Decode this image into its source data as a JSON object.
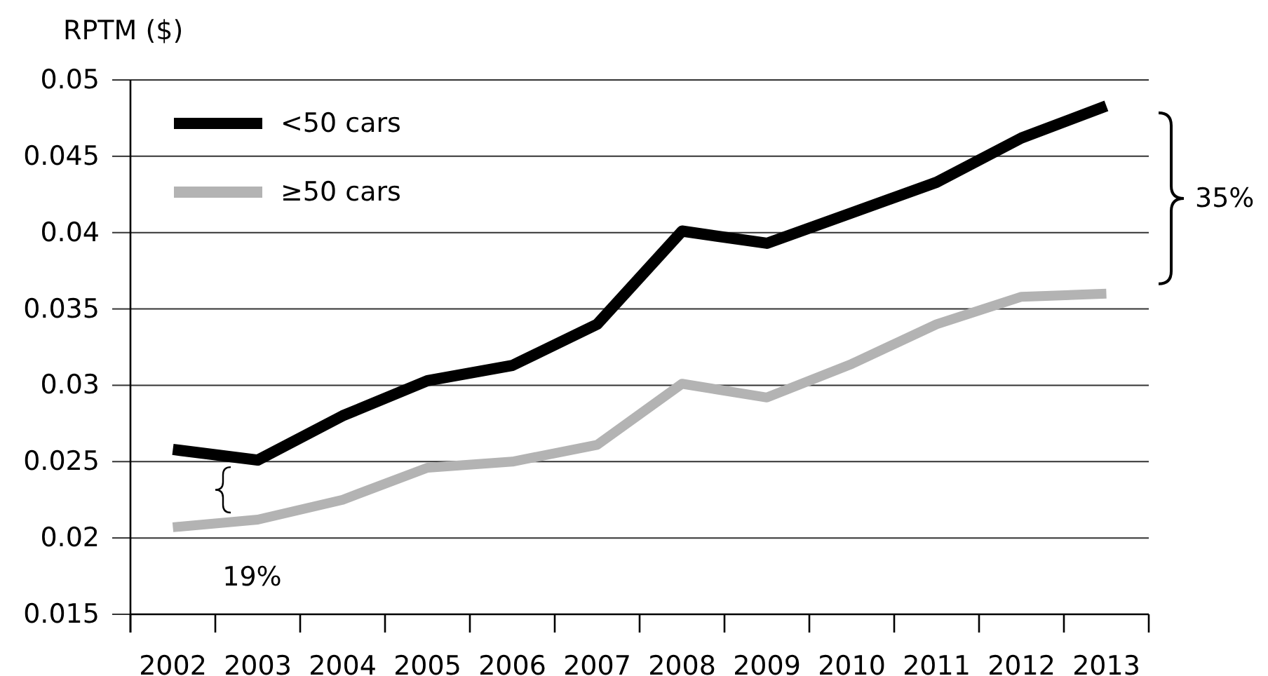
{
  "chart_data": {
    "type": "line",
    "ylabel": "RPTM ($)",
    "categories": [
      "2002",
      "2003",
      "2004",
      "2005",
      "2006",
      "2007",
      "2008",
      "2009",
      "2010",
      "2011",
      "2012",
      "2013"
    ],
    "series": [
      {
        "name": "<50 cars",
        "color": "#000000",
        "values": [
          0.0258,
          0.0251,
          0.028,
          0.0303,
          0.0313,
          0.034,
          0.0401,
          0.0393,
          0.0413,
          0.0433,
          0.0462,
          0.0483
        ]
      },
      {
        "name": "≥50 cars",
        "color": "#b3b3b3",
        "values": [
          0.0207,
          0.0212,
          0.0225,
          0.0246,
          0.025,
          0.0261,
          0.0301,
          0.0292,
          0.0314,
          0.034,
          0.0358,
          0.036
        ]
      }
    ],
    "ylim": [
      0.015,
      0.05
    ],
    "yticks": [
      0.015,
      0.02,
      0.025,
      0.03,
      0.035,
      0.04,
      0.045,
      0.05
    ],
    "grid": "y",
    "legend": "top left",
    "annotations": [
      "35%",
      "19%"
    ]
  }
}
